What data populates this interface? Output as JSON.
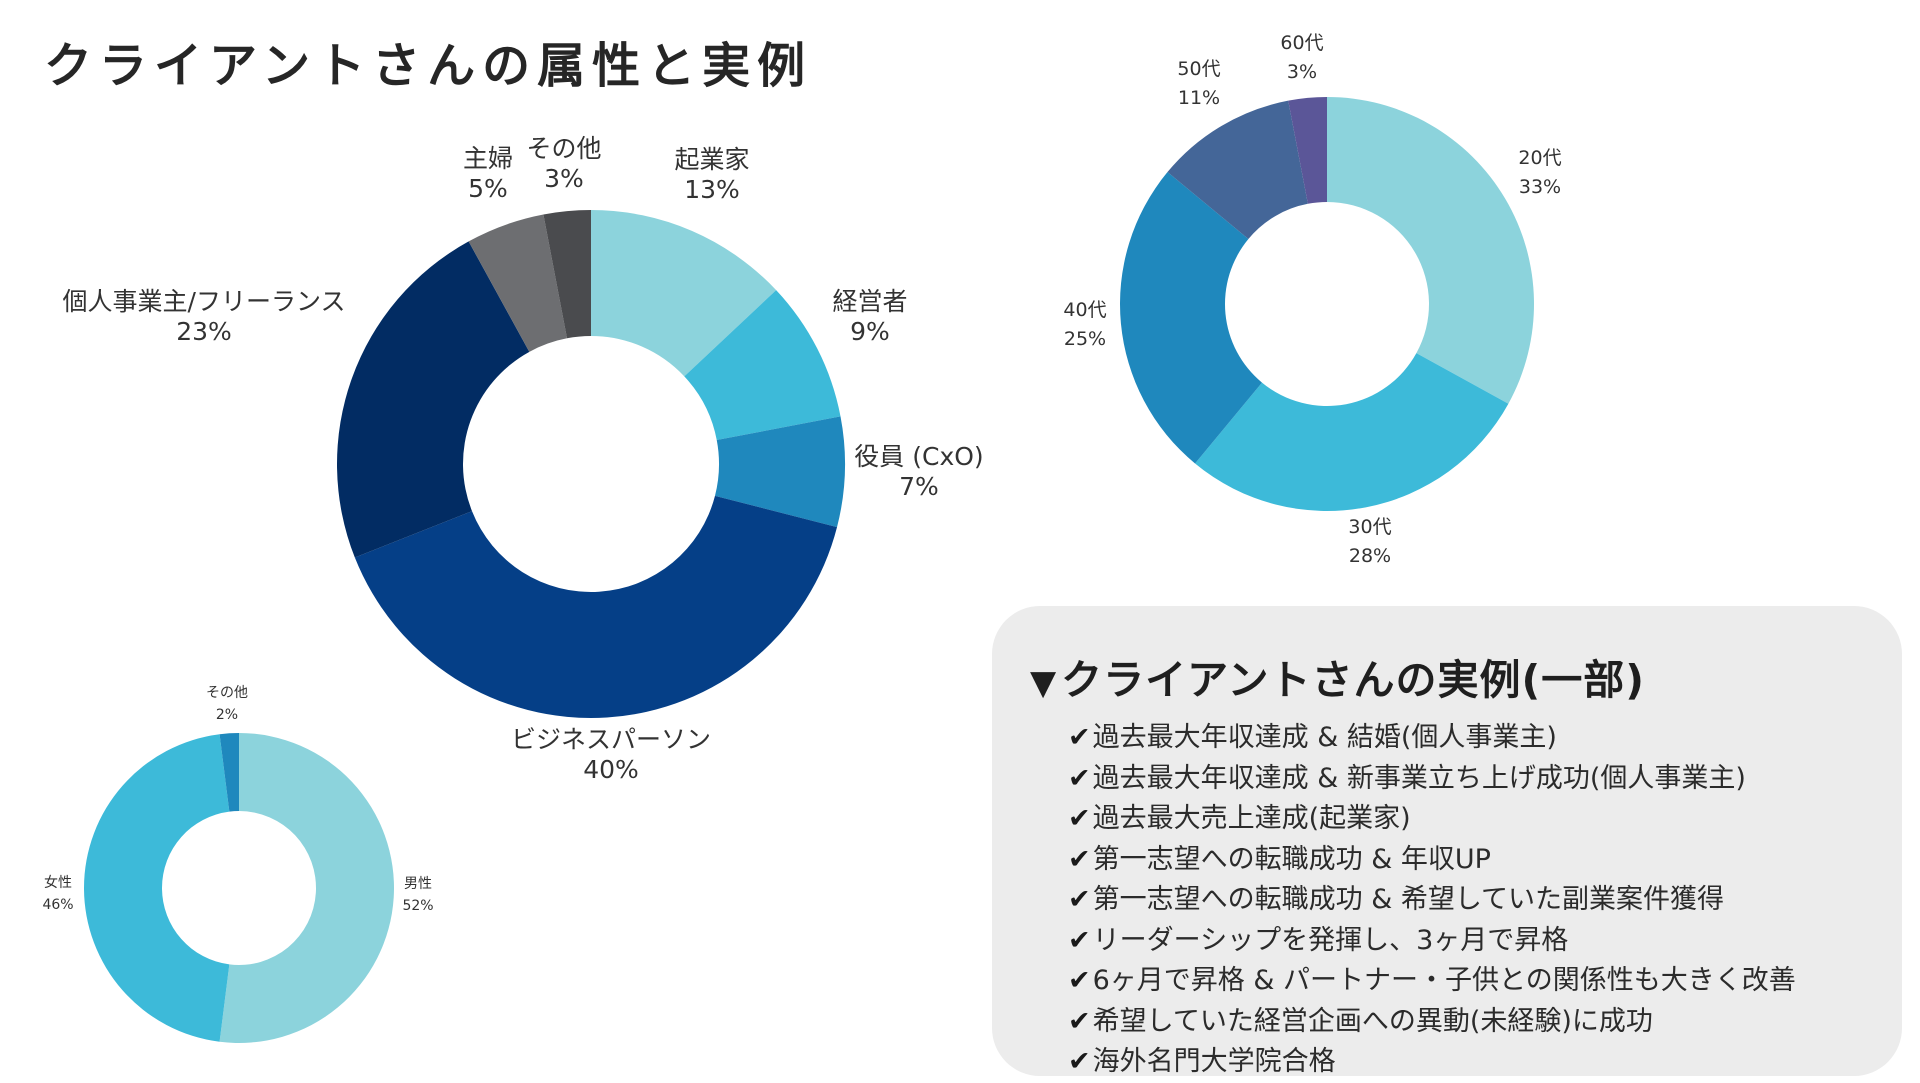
{
  "page": {
    "title": "クライアントさんの属性と実例"
  },
  "chart_data": [
    {
      "type": "donut",
      "slices": [
        {
          "label": "起業家",
          "value": 13,
          "display": "13%",
          "color": "#8cd3dc"
        },
        {
          "label": "経営者",
          "value": 9,
          "display": "9%",
          "color": "#3dbad9"
        },
        {
          "label": "役員 (CxO)",
          "value": 7,
          "display": "7%",
          "color": "#1f88bd"
        },
        {
          "label": "ビジネスパーソン",
          "value": 40,
          "display": "40%",
          "color": "#053f87"
        },
        {
          "label": "個人事業主/フリーランス",
          "value": 23,
          "display": "23%",
          "color": "#022c63"
        },
        {
          "label": "主婦",
          "value": 5,
          "display": "5%",
          "color": "#6d6e71"
        },
        {
          "label": "その他",
          "value": 3,
          "display": "3%",
          "color": "#4a4b4e"
        }
      ]
    },
    {
      "type": "donut",
      "slices": [
        {
          "label": "20代",
          "value": 33,
          "display": "33%",
          "color": "#8cd3dc"
        },
        {
          "label": "30代",
          "value": 28,
          "display": "28%",
          "color": "#3dbad9"
        },
        {
          "label": "40代",
          "value": 25,
          "display": "25%",
          "color": "#1f88bd"
        },
        {
          "label": "50代",
          "value": 11,
          "display": "11%",
          "color": "#446698"
        },
        {
          "label": "60代",
          "value": 3,
          "display": "3%",
          "color": "#5b5698"
        }
      ]
    },
    {
      "type": "donut",
      "slices": [
        {
          "label": "男性",
          "value": 52,
          "display": "52%",
          "color": "#8cd3dc"
        },
        {
          "label": "女性",
          "value": 46,
          "display": "46%",
          "color": "#3dbad9"
        },
        {
          "label": "その他",
          "value": 2,
          "display": "2%",
          "color": "#1f88bd"
        }
      ]
    }
  ],
  "cases": {
    "title": "クライアントさんの実例(一部)",
    "triangle_icon": "▼",
    "check_icon": "✔",
    "items": [
      "過去最大年収達成 & 結婚(個人事業主)",
      "過去最大年収達成 & 新事業立ち上げ成功(個人事業主)",
      "過去最大売上達成(起業家)",
      "第一志望への転職成功 & 年収UP",
      "第一志望への転職成功 & 希望していた副業案件獲得",
      "リーダーシップを発揮し、3ヶ月で昇格",
      "6ヶ月で昇格 & パートナー・子供との関係性も大きく改善",
      "希望していた経営企画への異動(未経験)に成功",
      "海外名門大学院合格"
    ]
  }
}
